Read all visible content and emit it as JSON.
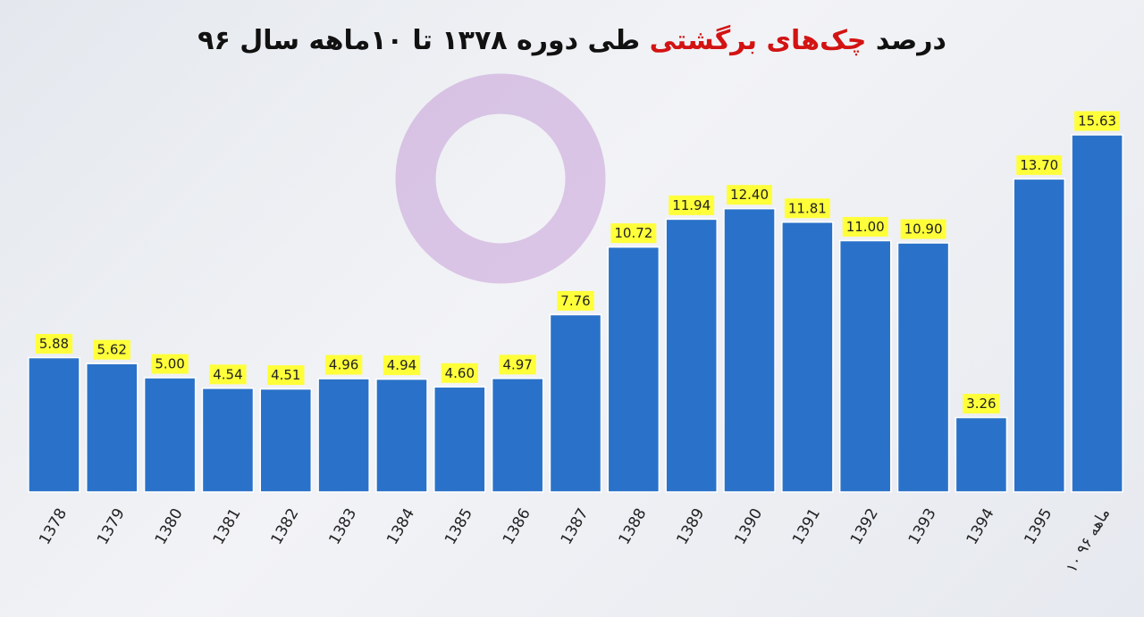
{
  "chart_data": {
    "type": "bar",
    "title_parts": [
      "درصد",
      "چک‌های برگشتی",
      "طی دوره ۱۳۷۸ تا ۱۰ماهه سال ۹۶"
    ],
    "categories": [
      "1378",
      "1379",
      "1380",
      "1381",
      "1382",
      "1383",
      "1384",
      "1385",
      "1386",
      "1387",
      "1388",
      "1389",
      "1390",
      "1391",
      "1392",
      "1393",
      "1394",
      "1395",
      "۱۰ ماهه ۹۶"
    ],
    "values": [
      5.88,
      5.62,
      5.0,
      4.54,
      4.51,
      4.96,
      4.94,
      4.6,
      4.97,
      7.76,
      10.72,
      11.94,
      12.4,
      11.81,
      11.0,
      10.9,
      3.26,
      13.7,
      15.63
    ],
    "value_labels": [
      "5.88",
      "5.62",
      "5.00",
      "4.54",
      "4.51",
      "4.96",
      "4.94",
      "4.60",
      "4.97",
      "7.76",
      "10.72",
      "11.94",
      "12.40",
      "11.81",
      "11.00",
      "10.90",
      "3.26",
      "13.70",
      "15.63"
    ],
    "color": "#2a72c9",
    "label_color": "#ffff3a"
  }
}
